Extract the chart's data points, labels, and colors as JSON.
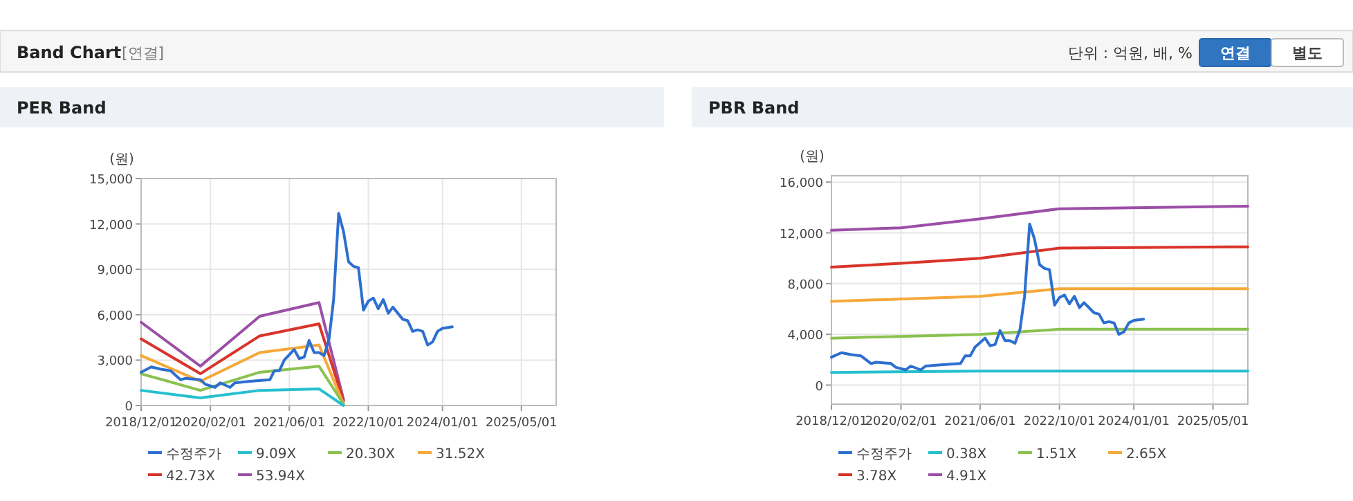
{
  "chart_data": [
    {
      "type": "other",
      "title": "Band Chart",
      "annotations": [
        "[연결]",
        "단위 : 억원, 배, %",
        "연결",
        "별도"
      ]
    },
    {
      "type": "line",
      "title": "PER Band",
      "ylabel": "(원)",
      "xlim": [
        "2018-12-01",
        "2025-12-01"
      ],
      "ylim": [
        0,
        15000
      ],
      "xticks": [
        {
          "value": "2018-12-01",
          "label": "2018/12/01"
        },
        {
          "value": "2020-02-01",
          "label": "2020/02/01"
        },
        {
          "value": "2021-06-01",
          "label": "2021/06/01"
        },
        {
          "value": "2022-10-01",
          "label": "2022/10/01"
        },
        {
          "value": "2024-01-01",
          "label": "2024/01/01"
        },
        {
          "value": "2025-05-01",
          "label": "2025/05/01"
        }
      ],
      "yticks": [
        {
          "value": 0,
          "label": "0"
        },
        {
          "value": 3000,
          "label": "3,000"
        },
        {
          "value": 6000,
          "label": "6,000"
        },
        {
          "value": 9000,
          "label": "9,000"
        },
        {
          "value": 12000,
          "label": "12,000"
        },
        {
          "value": 15000,
          "label": "15,000"
        }
      ],
      "grid": true,
      "legend": "bottom",
      "series": [
        {
          "name": "수정주가",
          "color": "#2d6fd0",
          "x": [
            "2018-12",
            "2019-02",
            "2019-04",
            "2019-06",
            "2019-08",
            "2019-09",
            "2019-12",
            "2020-01",
            "2020-03",
            "2020-04",
            "2020-06",
            "2020-07",
            "2020-10",
            "2021-02",
            "2021-03",
            "2021-04",
            "2021-05",
            "2021-07",
            "2021-08",
            "2021-09",
            "2021-10",
            "2021-11",
            "2021-12",
            "2022-01",
            "2022-02",
            "2022-03",
            "2022-04",
            "2022-05",
            "2022-06",
            "2022-07",
            "2022-08",
            "2022-09",
            "2022-10",
            "2022-11",
            "2022-12",
            "2023-01",
            "2023-02",
            "2023-03",
            "2023-05",
            "2023-06",
            "2023-07",
            "2023-08",
            "2023-09",
            "2023-10",
            "2023-11",
            "2023-12",
            "2024-01",
            "2024-03"
          ],
          "values": [
            2200,
            2550,
            2400,
            2300,
            1700,
            1800,
            1700,
            1400,
            1200,
            1500,
            1200,
            1500,
            1600,
            1700,
            2300,
            2300,
            3000,
            3700,
            3100,
            3200,
            4300,
            3500,
            3500,
            3300,
            4400,
            7000,
            12700,
            11500,
            9500,
            9200,
            9100,
            6300,
            6900,
            7100,
            6400,
            7000,
            6100,
            6500,
            5700,
            5600,
            4900,
            5000,
            4900,
            4000,
            4200,
            4900,
            5100,
            5200
          ]
        },
        {
          "name": "9.09X",
          "color": "#26bfcf",
          "x": [
            "2018-12",
            "2019-12",
            "2020-12",
            "2021-12",
            "2022-05"
          ],
          "values": [
            1000,
            500,
            1000,
            1100,
            0
          ]
        },
        {
          "name": "20.30X",
          "color": "#8bc14f",
          "x": [
            "2018-12",
            "2019-12",
            "2020-12",
            "2021-12",
            "2022-05"
          ],
          "values": [
            2100,
            1000,
            2200,
            2600,
            100
          ]
        },
        {
          "name": "31.52X",
          "color": "#f5a93a",
          "x": [
            "2018-12",
            "2019-12",
            "2020-12",
            "2021-12",
            "2022-05"
          ],
          "values": [
            3300,
            1600,
            3500,
            4000,
            100
          ]
        },
        {
          "name": "42.73X",
          "color": "#d9342b",
          "x": [
            "2018-12",
            "2019-12",
            "2020-12",
            "2021-12",
            "2022-05"
          ],
          "values": [
            4400,
            2100,
            4600,
            5400,
            300
          ]
        },
        {
          "name": "53.94X",
          "color": "#9b4fa6",
          "x": [
            "2018-12",
            "2019-12",
            "2020-12",
            "2021-12",
            "2022-05"
          ],
          "values": [
            5500,
            2600,
            5900,
            6800,
            400
          ]
        }
      ]
    },
    {
      "type": "line",
      "title": "PBR Band",
      "ylabel": "(원)",
      "xlim": [
        "2018-12-01",
        "2025-12-01"
      ],
      "ylim": [
        -1500,
        16500
      ],
      "xticks": [
        {
          "value": "2018-12-01",
          "label": "2018/12/01"
        },
        {
          "value": "2020-02-01",
          "label": "2020/02/01"
        },
        {
          "value": "2021-06-01",
          "label": "2021/06/01"
        },
        {
          "value": "2022-10-01",
          "label": "2022/10/01"
        },
        {
          "value": "2024-01-01",
          "label": "2024/01/01"
        },
        {
          "value": "2025-05-01",
          "label": "2025/05/01"
        }
      ],
      "yticks": [
        {
          "value": 0,
          "label": "0"
        },
        {
          "value": 4000,
          "label": "4,000"
        },
        {
          "value": 8000,
          "label": "8,000"
        },
        {
          "value": 12000,
          "label": "12,000"
        },
        {
          "value": 16000,
          "label": "16,000"
        }
      ],
      "grid": true,
      "legend": "bottom",
      "series": [
        {
          "name": "수정주가",
          "color": "#2d6fd0",
          "x": [
            "2018-12",
            "2019-02",
            "2019-04",
            "2019-06",
            "2019-08",
            "2019-09",
            "2019-12",
            "2020-01",
            "2020-03",
            "2020-04",
            "2020-06",
            "2020-07",
            "2020-10",
            "2021-02",
            "2021-03",
            "2021-04",
            "2021-05",
            "2021-07",
            "2021-08",
            "2021-09",
            "2021-10",
            "2021-11",
            "2021-12",
            "2022-01",
            "2022-02",
            "2022-03",
            "2022-04",
            "2022-05",
            "2022-06",
            "2022-07",
            "2022-08",
            "2022-09",
            "2022-10",
            "2022-11",
            "2022-12",
            "2023-01",
            "2023-02",
            "2023-03",
            "2023-05",
            "2023-06",
            "2023-07",
            "2023-08",
            "2023-09",
            "2023-10",
            "2023-11",
            "2023-12",
            "2024-01",
            "2024-03"
          ],
          "values": [
            2200,
            2550,
            2400,
            2300,
            1700,
            1800,
            1700,
            1400,
            1200,
            1500,
            1200,
            1500,
            1600,
            1700,
            2300,
            2300,
            3000,
            3700,
            3100,
            3200,
            4300,
            3500,
            3500,
            3300,
            4400,
            7000,
            12700,
            11500,
            9500,
            9200,
            9100,
            6300,
            6900,
            7100,
            6400,
            7000,
            6100,
            6500,
            5700,
            5600,
            4900,
            5000,
            4900,
            4000,
            4200,
            4900,
            5100,
            5200
          ]
        },
        {
          "name": "0.38X",
          "color": "#26bfcf",
          "x": [
            "2018-12",
            "2021-06",
            "2022-10",
            "2025-12"
          ],
          "values": [
            1000,
            1100,
            1100,
            1100
          ]
        },
        {
          "name": "1.51X",
          "color": "#8bc14f",
          "x": [
            "2018-12",
            "2021-06",
            "2022-10",
            "2025-12"
          ],
          "values": [
            3700,
            4000,
            4400,
            4400
          ]
        },
        {
          "name": "2.65X",
          "color": "#f5a93a",
          "x": [
            "2018-12",
            "2021-06",
            "2022-10",
            "2025-12"
          ],
          "values": [
            6600,
            7000,
            7600,
            7600
          ]
        },
        {
          "name": "3.78X",
          "color": "#d9342b",
          "x": [
            "2018-12",
            "2020-02",
            "2021-06",
            "2022-10",
            "2025-12"
          ],
          "values": [
            9300,
            9600,
            10000,
            10800,
            10900
          ]
        },
        {
          "name": "4.91X",
          "color": "#9b4fa6",
          "x": [
            "2018-12",
            "2020-02",
            "2021-06",
            "2022-10",
            "2025-12"
          ],
          "values": [
            12200,
            12400,
            13100,
            13900,
            14100
          ]
        }
      ]
    }
  ]
}
